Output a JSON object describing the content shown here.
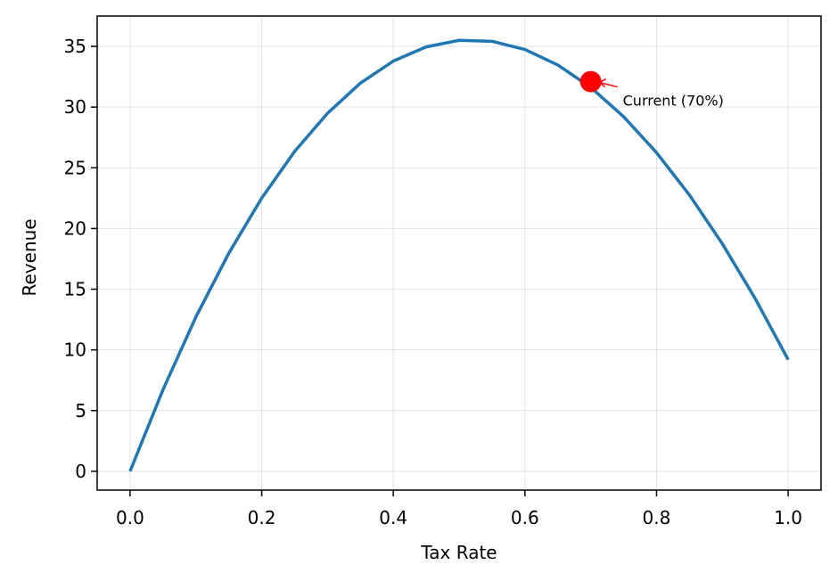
{
  "chart_data": {
    "type": "line",
    "xlabel": "Tax Rate",
    "ylabel": "Revenue",
    "x": [
      0,
      0.05,
      0.1,
      0.15,
      0.2,
      0.25,
      0.3,
      0.35,
      0.4,
      0.45,
      0.5,
      0.55,
      0.6,
      0.65,
      0.7,
      0.75,
      0.8,
      0.85,
      0.9,
      0.95,
      1.0
    ],
    "series": [
      {
        "color": "#1f77b4",
        "values": [
          0,
          6.72,
          12.71,
          17.96,
          22.5,
          26.34,
          29.49,
          31.97,
          33.79,
          34.96,
          35.5,
          35.42,
          34.74,
          33.47,
          31.62,
          29.21,
          26.25,
          22.76,
          18.74,
          14.22,
          9.2
        ]
      }
    ],
    "points": {
      "x": [
        0.7
      ],
      "values": [
        32.1
      ],
      "color": "#ff0000"
    },
    "annotation": "Current (70%)",
    "xlim": [
      -0.05,
      1.05
    ],
    "ylim": [
      -1.55,
      37.5
    ],
    "xticks": [
      {
        "value": 0,
        "label": "0.0"
      },
      0.2,
      0.4,
      0.6,
      0.8,
      {
        "value": 1,
        "label": "1.0"
      }
    ],
    "yticks": [
      0,
      5,
      10,
      15,
      20,
      25,
      30,
      35
    ],
    "grid": true
  }
}
